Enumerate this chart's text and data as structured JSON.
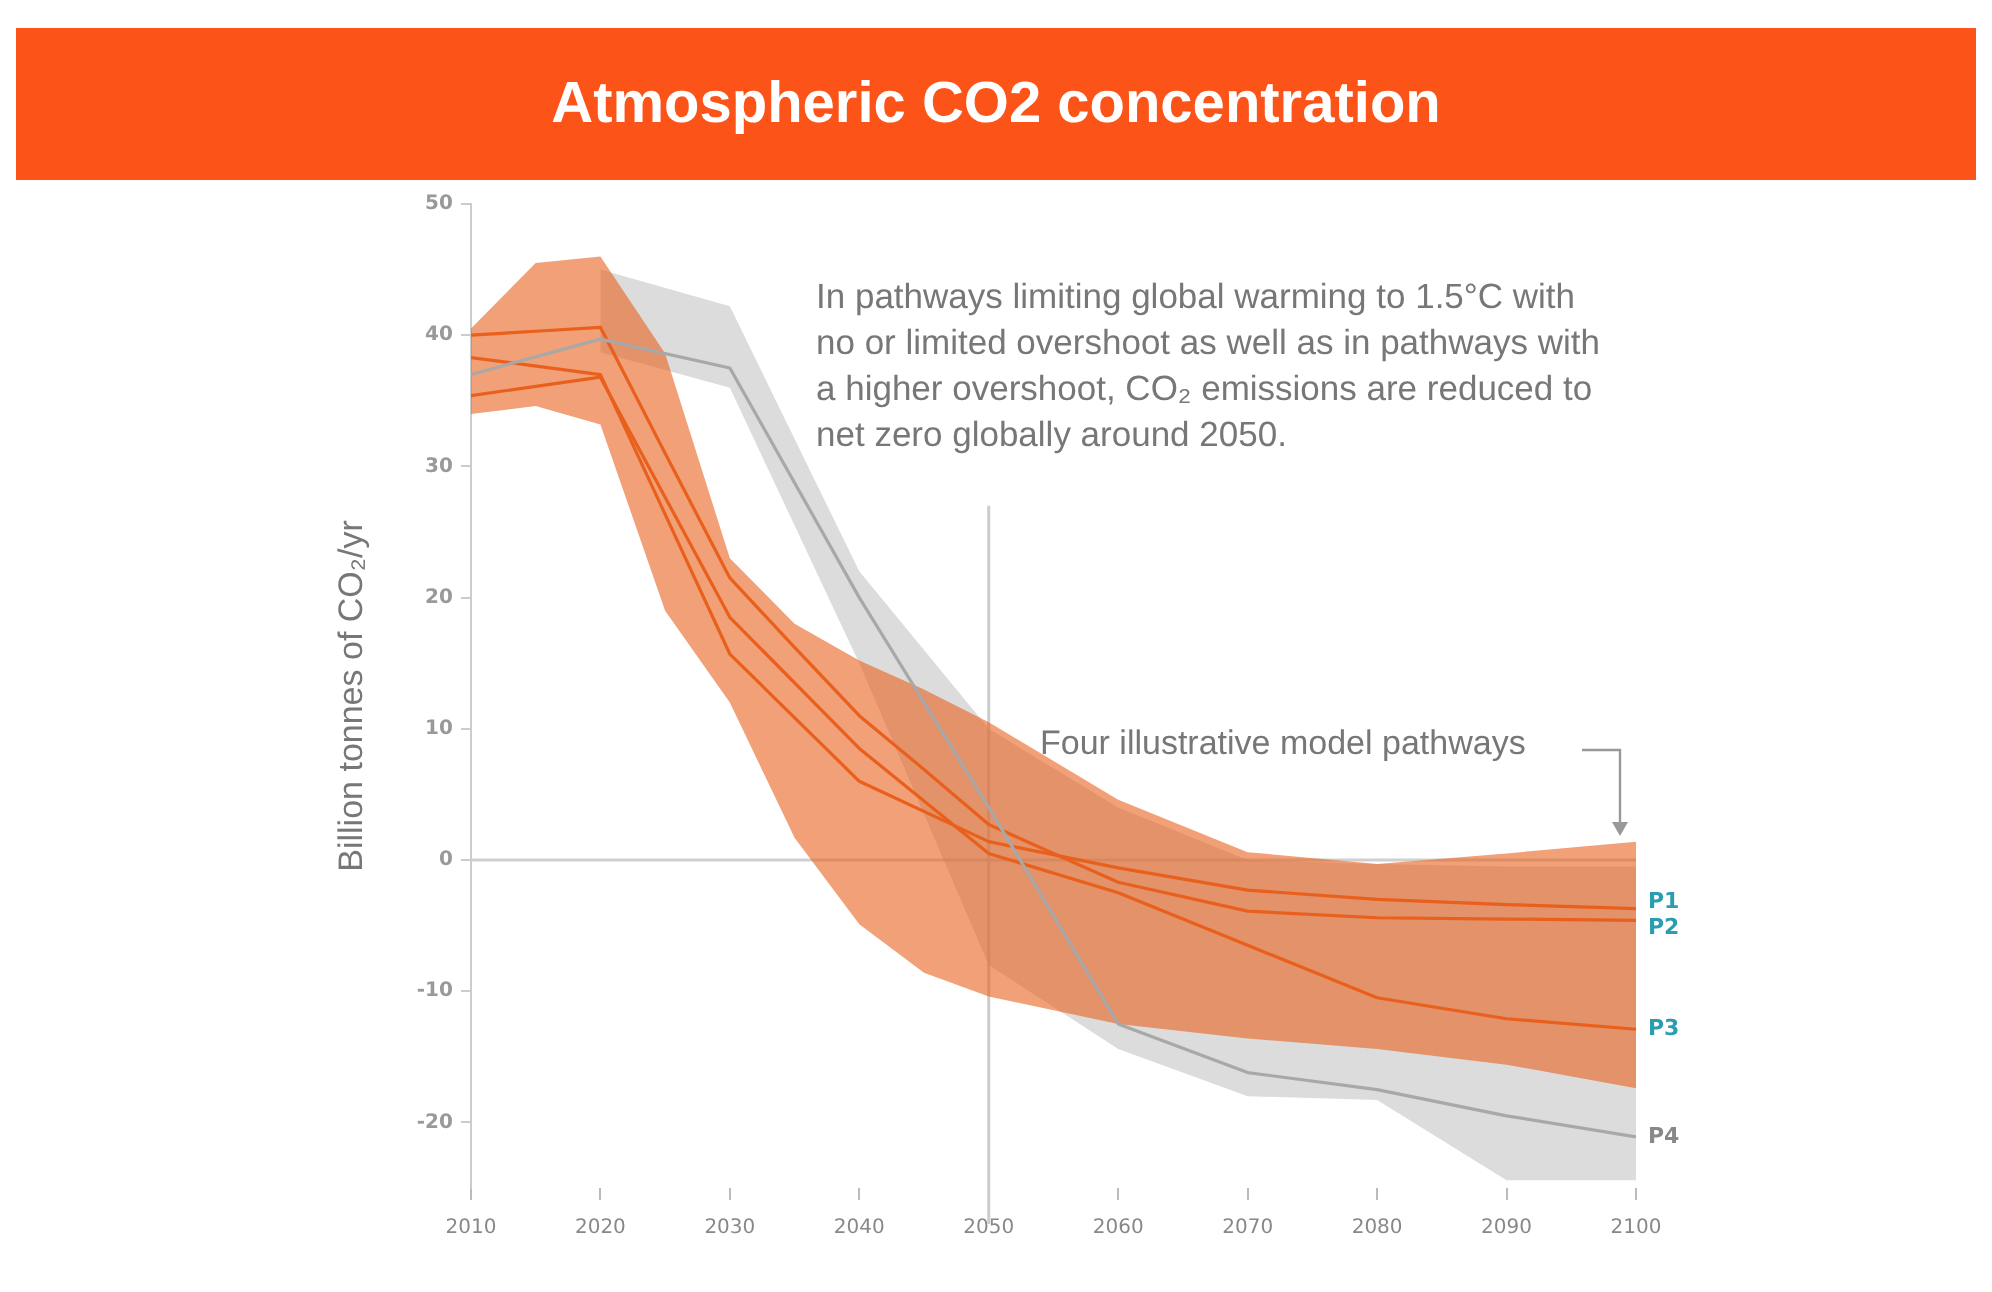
{
  "chart_data": {
    "type": "line",
    "title": "Atmospheric CO2 concentration",
    "ylabel": "Billion tonnes of CO₂/yr",
    "xlim": [
      2010,
      2100
    ],
    "xticks": [
      2010,
      2020,
      2030,
      2040,
      2050,
      2060,
      2070,
      2080,
      2090,
      2100
    ],
    "ylim": [
      -25,
      50
    ],
    "yticks": [
      -20,
      -10,
      0,
      10,
      20,
      30,
      40,
      50
    ],
    "grid": false,
    "legend": false,
    "marker": "none",
    "line_style": "solid",
    "series": [
      {
        "name": "P4",
        "color": "#a8a8a8",
        "x": [
          2010,
          2020,
          2030,
          2040,
          2050,
          2060,
          2070,
          2080,
          2090,
          2100
        ],
        "values": [
          37,
          39.7,
          37.5,
          20,
          4,
          -12.5,
          -16.2,
          -17.5,
          -19.5,
          -21.1
        ],
        "lower": [
          null,
          38.7,
          36,
          15,
          -8,
          -14.4,
          -18,
          -18.3,
          -24.4,
          -24.4
        ],
        "upper": [
          null,
          45,
          42.2,
          22,
          10,
          4,
          0,
          -0.3,
          -0.5,
          -0.5
        ]
      },
      {
        "name": "P2",
        "color": "#e8601c",
        "x": [
          2010,
          2015,
          2020,
          2025,
          2030,
          2035,
          2040,
          2045,
          2050,
          2060,
          2070,
          2080,
          2090,
          2100
        ],
        "values": [
          40,
          40.3,
          40.6,
          31,
          21.5,
          16.2,
          11,
          6.9,
          2.7,
          -1.7,
          -3.9,
          -4.4,
          -4.5,
          -4.6
        ],
        "lower": [
          34,
          34.6,
          33.2,
          19,
          12,
          1.7,
          -4.9,
          -8.6,
          -10.4,
          -12.5,
          -13.6,
          -14.4,
          -15.6,
          -17.4
        ],
        "upper": [
          40.5,
          45.5,
          46,
          38.6,
          23,
          18,
          15.2,
          13,
          10.5,
          4.6,
          0.6,
          -0.3,
          0.5,
          1.4
        ]
      },
      {
        "name": "P1",
        "color": "#e8601c",
        "x": [
          2010,
          2020,
          2030,
          2040,
          2050,
          2060,
          2070,
          2080,
          2090,
          2100
        ],
        "values": [
          38.3,
          37,
          15.7,
          6,
          1.4,
          -0.6,
          -2.3,
          -3,
          -3.4,
          -3.7
        ]
      },
      {
        "name": "P3",
        "color": "#e8601c",
        "x": [
          2010,
          2020,
          2030,
          2040,
          2050,
          2060,
          2070,
          2080,
          2090,
          2100
        ],
        "values": [
          35.4,
          36.8,
          18.5,
          8.5,
          0.5,
          -2.5,
          -6.5,
          -10.5,
          -12.1,
          -12.9
        ]
      }
    ],
    "ref_lines": [
      {
        "axis": "y",
        "value": 0,
        "color": "#d0d0d0"
      },
      {
        "axis": "x",
        "value": 2050,
        "color": "#cccccc"
      }
    ],
    "annotations": [
      "In pathways limiting global warming to 1.5°C with no or limited overshoot as well as in pathways with a higher overshoot, CO₂ emissions are reduced to net zero globally around 2050.",
      "Four illustrative model pathways"
    ]
  }
}
